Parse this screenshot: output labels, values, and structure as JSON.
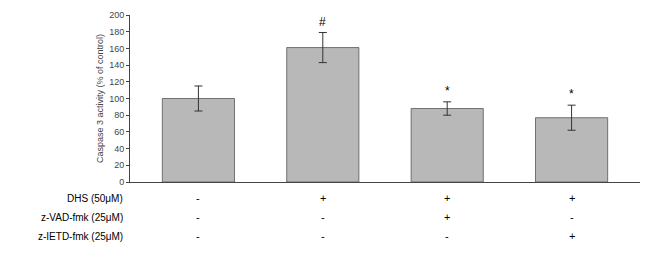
{
  "chart_data": {
    "type": "bar",
    "categories": [
      null,
      null,
      null,
      null
    ],
    "values": [
      100,
      161,
      88,
      77
    ],
    "errors": [
      15,
      18,
      8,
      15
    ],
    "color": "#b8b8b8",
    "ylabel": "Caspase 3 activity (% of control)",
    "ylim": [
      0,
      200
    ],
    "yticks": [
      0,
      20,
      40,
      60,
      80,
      100,
      120,
      140,
      160,
      180,
      200
    ],
    "grid": false,
    "tick_labels": "y",
    "annotations": [
      {
        "index": 1,
        "text": "#"
      },
      {
        "index": 2,
        "text": "*"
      },
      {
        "index": 3,
        "text": "*"
      }
    ],
    "treatments": [
      {
        "label": "DHS (50μM)",
        "signs": [
          "-",
          "+",
          "+",
          "+"
        ]
      },
      {
        "label": "z-VAD-fmk (25μM)",
        "signs": [
          "-",
          "-",
          "+",
          "-"
        ]
      },
      {
        "label": "z-IETD-fmk (25μM)",
        "signs": [
          "-",
          "-",
          "-",
          "+"
        ]
      }
    ]
  }
}
